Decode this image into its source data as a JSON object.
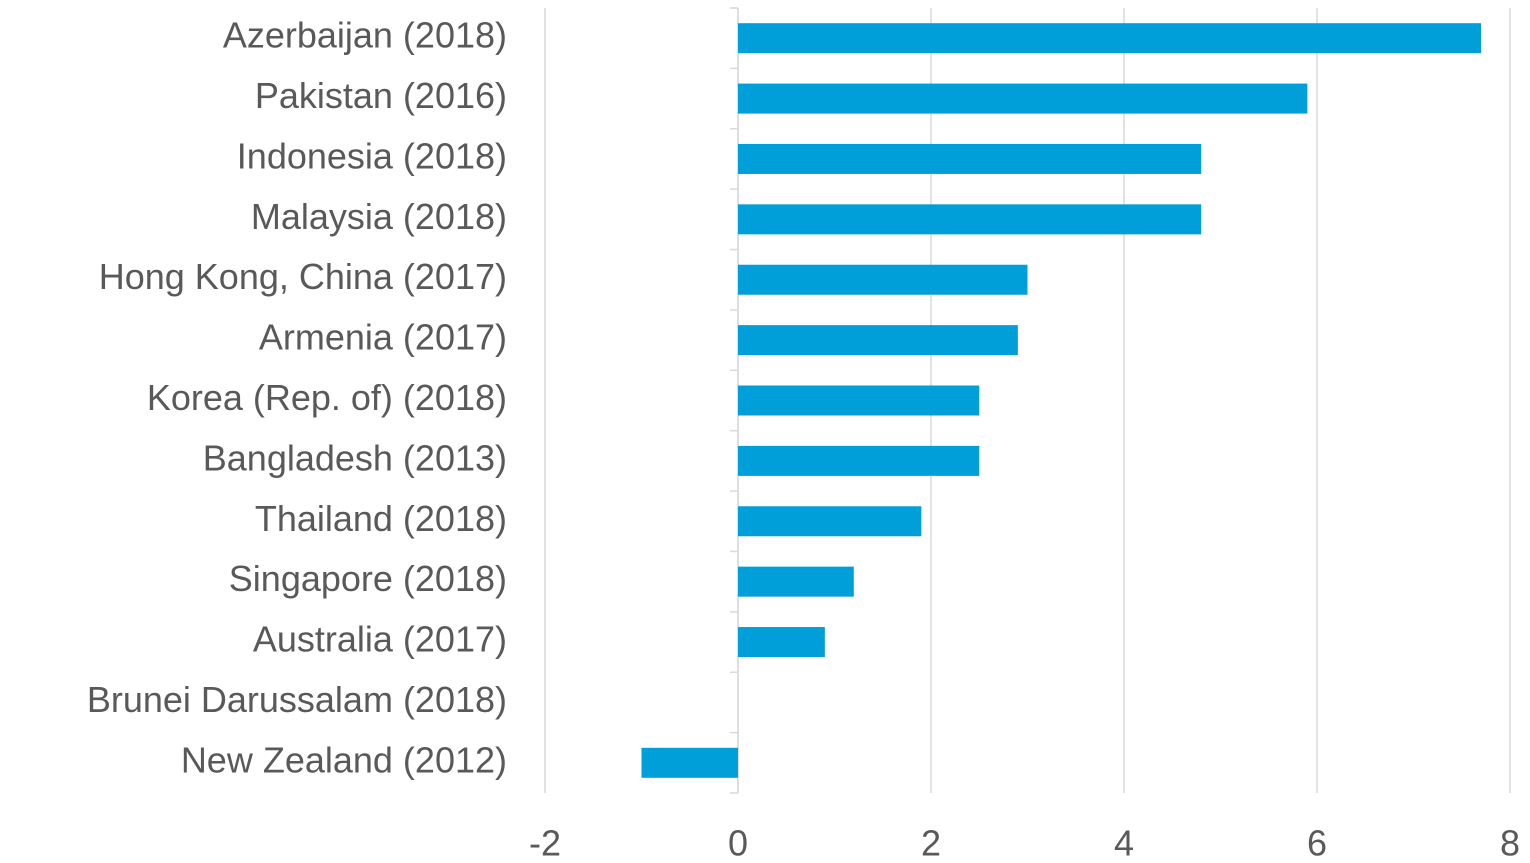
{
  "chart_data": {
    "type": "barh",
    "categories": [
      "Azerbaijan (2018)",
      "Pakistan (2016)",
      "Indonesia (2018)",
      "Malaysia (2018)",
      "Hong Kong, China (2017)",
      "Armenia (2017)",
      "Korea (Rep. of) (2018)",
      "Bangladesh (2013)",
      "Thailand (2018)",
      "Singapore (2018)",
      "Australia (2017)",
      "Brunei Darussalam (2018)",
      "New Zealand (2012)"
    ],
    "values": [
      7.7,
      5.9,
      4.8,
      4.8,
      3.0,
      2.9,
      2.5,
      2.5,
      1.9,
      1.2,
      0.9,
      0,
      -1.0
    ],
    "color": "#009fd9",
    "xlim": [
      -2,
      8
    ],
    "xticks": [
      -2,
      0,
      2,
      4,
      6,
      8
    ],
    "grid": true
  }
}
